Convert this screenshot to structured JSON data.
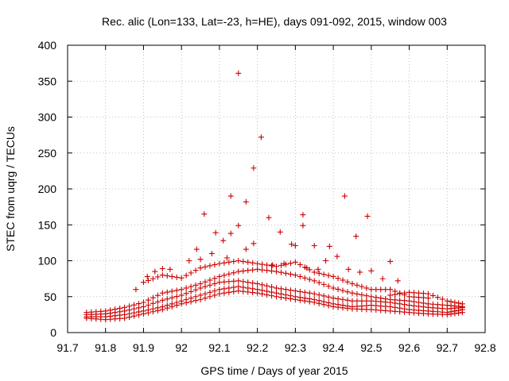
{
  "chart_data": {
    "type": "scatter",
    "title": "Rec. alic (Lon=133, Lat=-23, h=HE), days 091-092, 2015, window 003",
    "xlabel": "GPS time / Days of year 2015",
    "ylabel": "STEC from uqrg / TECUs",
    "xlim": [
      91.7,
      92.8
    ],
    "ylim": [
      0,
      400
    ],
    "xticks": [
      "91.7",
      "91.8",
      "91.9",
      "92",
      "92.1",
      "92.2",
      "92.3",
      "92.4",
      "92.5",
      "92.6",
      "92.7",
      "92.8"
    ],
    "yticks": [
      "0",
      "50",
      "100",
      "150",
      "200",
      "250",
      "300",
      "350",
      "400"
    ],
    "grid": true,
    "marker": "+",
    "color": "#cc0000",
    "outliers": [
      [
        92.15,
        361
      ],
      [
        92.21,
        272
      ],
      [
        92.19,
        229
      ],
      [
        92.13,
        190
      ],
      [
        92.43,
        190
      ],
      [
        92.17,
        182
      ],
      [
        92.06,
        165
      ],
      [
        92.23,
        160
      ],
      [
        92.32,
        164
      ],
      [
        92.49,
        162
      ],
      [
        92.32,
        149
      ],
      [
        92.15,
        149
      ],
      [
        92.13,
        138
      ],
      [
        92.09,
        139
      ],
      [
        92.26,
        140
      ],
      [
        92.46,
        134
      ],
      [
        92.11,
        128
      ],
      [
        92.19,
        124
      ],
      [
        92.29,
        123
      ],
      [
        92.3,
        121
      ],
      [
        92.35,
        121
      ],
      [
        92.39,
        120
      ],
      [
        92.17,
        116
      ],
      [
        92.04,
        116
      ],
      [
        92.41,
        106
      ],
      [
        92.55,
        99
      ],
      [
        92.38,
        100
      ],
      [
        91.93,
        85
      ],
      [
        91.95,
        89
      ],
      [
        91.97,
        88
      ],
      [
        92.5,
        86
      ],
      [
        92.44,
        88
      ],
      [
        92.57,
        72
      ],
      [
        92.53,
        75
      ],
      [
        92.05,
        102
      ],
      [
        92.02,
        100
      ],
      [
        92.08,
        110
      ],
      [
        92.12,
        104
      ],
      [
        92.24,
        94
      ],
      [
        92.27,
        96
      ],
      [
        92.33,
        90
      ],
      [
        92.36,
        88
      ],
      [
        92.47,
        84
      ],
      [
        91.91,
        78
      ],
      [
        91.88,
        60
      ]
    ],
    "series": [
      {
        "values": [
          [
            91.75,
            28
          ],
          [
            91.8,
            30
          ],
          [
            91.85,
            35
          ],
          [
            91.9,
            42
          ],
          [
            91.95,
            55
          ],
          [
            92.0,
            60
          ],
          [
            92.05,
            68
          ],
          [
            92.1,
            78
          ],
          [
            92.15,
            85
          ],
          [
            92.2,
            88
          ],
          [
            92.25,
            85
          ],
          [
            92.3,
            80
          ],
          [
            92.35,
            72
          ],
          [
            92.4,
            62
          ],
          [
            92.45,
            55
          ],
          [
            92.5,
            50
          ],
          [
            92.55,
            46
          ],
          [
            92.6,
            44
          ],
          [
            92.65,
            40
          ],
          [
            92.7,
            38
          ],
          [
            92.74,
            36
          ]
        ]
      },
      {
        "values": [
          [
            91.75,
            25
          ],
          [
            91.8,
            26
          ],
          [
            91.85,
            30
          ],
          [
            91.9,
            36
          ],
          [
            91.95,
            45
          ],
          [
            92.0,
            52
          ],
          [
            92.05,
            62
          ],
          [
            92.1,
            70
          ],
          [
            92.15,
            72
          ],
          [
            92.2,
            68
          ],
          [
            92.25,
            62
          ],
          [
            92.3,
            58
          ],
          [
            92.35,
            54
          ],
          [
            92.4,
            48
          ],
          [
            92.45,
            44
          ],
          [
            92.5,
            44
          ],
          [
            92.55,
            42
          ],
          [
            92.6,
            38
          ],
          [
            92.65,
            35
          ],
          [
            92.7,
            33
          ],
          [
            92.74,
            35
          ]
        ]
      },
      {
        "values": [
          [
            91.75,
            22
          ],
          [
            91.8,
            22
          ],
          [
            91.85,
            25
          ],
          [
            91.9,
            30
          ],
          [
            91.95,
            36
          ],
          [
            92.0,
            44
          ],
          [
            92.05,
            52
          ],
          [
            92.1,
            60
          ],
          [
            92.15,
            64
          ],
          [
            92.2,
            60
          ],
          [
            92.25,
            55
          ],
          [
            92.3,
            50
          ],
          [
            92.35,
            46
          ],
          [
            92.4,
            40
          ],
          [
            92.45,
            36
          ],
          [
            92.5,
            38
          ],
          [
            92.55,
            36
          ],
          [
            92.6,
            32
          ],
          [
            92.65,
            30
          ],
          [
            92.7,
            28
          ],
          [
            92.74,
            32
          ]
        ]
      },
      {
        "values": [
          [
            91.75,
            20
          ],
          [
            91.8,
            18
          ],
          [
            91.85,
            20
          ],
          [
            91.9,
            26
          ],
          [
            91.95,
            32
          ],
          [
            92.0,
            40
          ],
          [
            92.05,
            46
          ],
          [
            92.1,
            54
          ],
          [
            92.15,
            58
          ],
          [
            92.2,
            55
          ],
          [
            92.25,
            50
          ],
          [
            92.3,
            46
          ],
          [
            92.35,
            42
          ],
          [
            92.4,
            36
          ],
          [
            92.45,
            33
          ],
          [
            92.5,
            32
          ],
          [
            92.55,
            30
          ],
          [
            92.6,
            28
          ],
          [
            92.65,
            26
          ],
          [
            92.7,
            25
          ],
          [
            92.74,
            28
          ]
        ]
      },
      {
        "values": [
          [
            91.9,
            70
          ],
          [
            91.95,
            80
          ],
          [
            92.0,
            76
          ],
          [
            92.05,
            90
          ],
          [
            92.1,
            96
          ],
          [
            92.15,
            100
          ],
          [
            92.2,
            96
          ],
          [
            92.25,
            92
          ],
          [
            92.3,
            98
          ],
          [
            92.35,
            84
          ],
          [
            92.4,
            78
          ],
          [
            92.45,
            68
          ],
          [
            92.5,
            60
          ],
          [
            92.55,
            60
          ],
          [
            92.6,
            50
          ],
          [
            92.65,
            48
          ]
        ]
      },
      {
        "values": [
          [
            92.55,
            52
          ],
          [
            92.6,
            56
          ],
          [
            92.65,
            54
          ],
          [
            92.7,
            44
          ],
          [
            92.74,
            40
          ]
        ]
      }
    ]
  }
}
